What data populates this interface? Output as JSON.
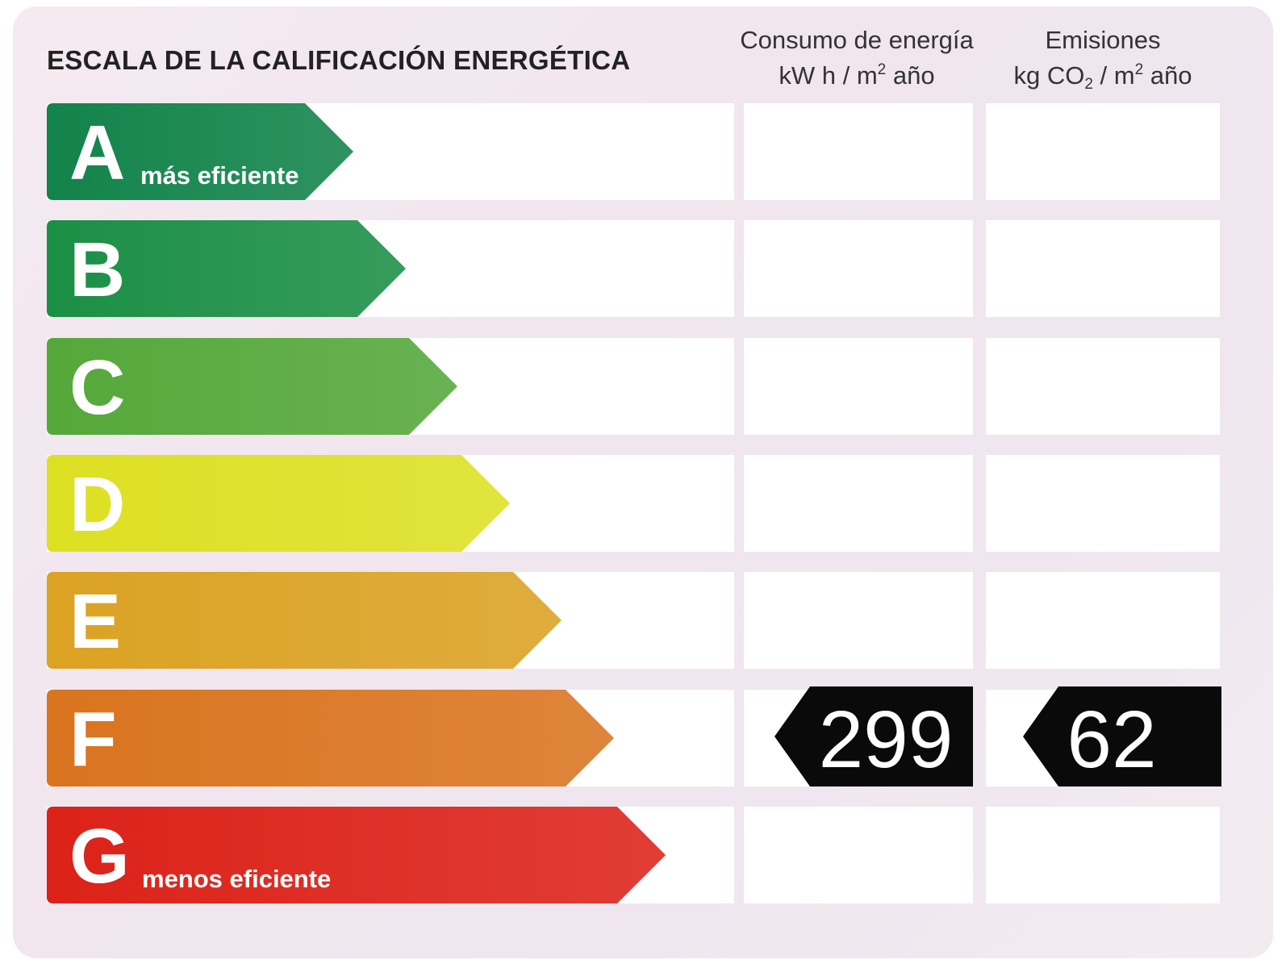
{
  "title": "ESCALA DE LA CALIFICACIÓN ENERGÉTICA",
  "columns": {
    "energy": {
      "line1": "Consumo de energía",
      "unit_prefix": "kW h  / m",
      "unit_sup": "2",
      "unit_suffix": " año"
    },
    "emissions": {
      "line1": "Emisiones",
      "unit_prefix": "kg CO",
      "unit_sub": "2",
      "unit_mid": "  / m",
      "unit_sup": "2",
      "unit_suffix": " año"
    }
  },
  "grades": [
    {
      "letter": "A",
      "caption": "más eficiente",
      "color": "#12834a"
    },
    {
      "letter": "B",
      "caption": "",
      "color": "#1b8f45"
    },
    {
      "letter": "C",
      "caption": "",
      "color": "#55a83a"
    },
    {
      "letter": "D",
      "caption": "",
      "color": "#dde022"
    },
    {
      "letter": "E",
      "caption": "",
      "color": "#dba223"
    },
    {
      "letter": "F",
      "caption": "",
      "color": "#d9741f"
    },
    {
      "letter": "G",
      "caption": "menos eficiente",
      "color": "#dc2219"
    }
  ],
  "rating": {
    "grade": "F",
    "energy_value": "299",
    "emissions_value": "62",
    "marker_color": "#0a0a0a"
  }
}
